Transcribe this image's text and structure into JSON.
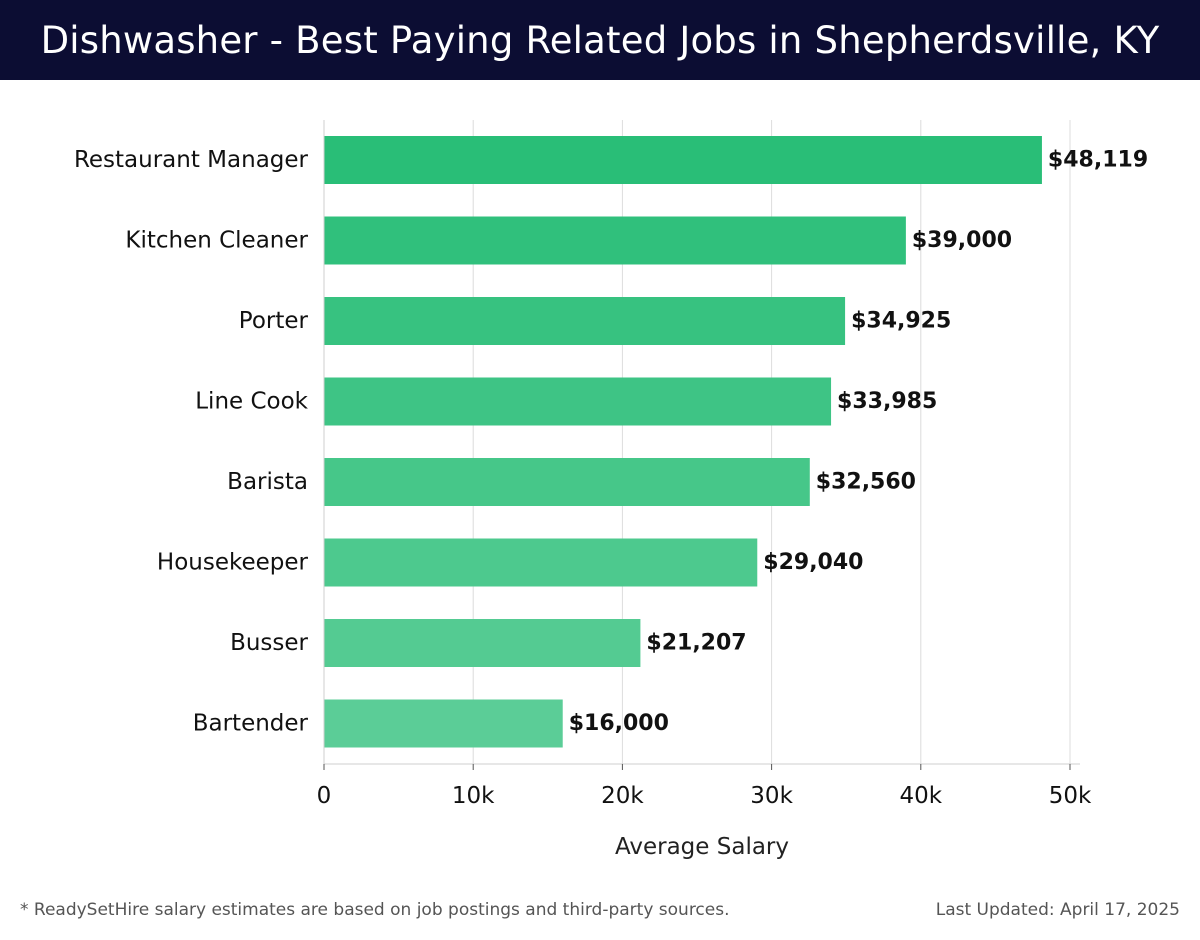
{
  "header": {
    "title": "Dishwasher - Best Paying Related Jobs in Shepherdsville, KY"
  },
  "footer": {
    "note": "* ReadySetHire salary estimates are based on job postings and third-party sources.",
    "updated": "Last Updated: April 17, 2025"
  },
  "colors": {
    "header_bg": "#0c0d33",
    "bar_top": "#29be77",
    "bar_bottom": "#5bcd97"
  },
  "chart_data": {
    "type": "bar",
    "orientation": "horizontal",
    "categories": [
      "Restaurant Manager",
      "Kitchen Cleaner",
      "Porter",
      "Line Cook",
      "Barista",
      "Housekeeper",
      "Busser",
      "Bartender"
    ],
    "values": [
      48119,
      39000,
      34925,
      33985,
      32560,
      29040,
      21207,
      16000
    ],
    "value_labels": [
      "$48,119",
      "$39,000",
      "$34,925",
      "$33,985",
      "$32,560",
      "$29,040",
      "$21,207",
      "$16,000"
    ],
    "xlabel": "Average Salary",
    "ylabel": "",
    "xlim": [
      0,
      50000
    ],
    "xticks": [
      0,
      10000,
      20000,
      30000,
      40000,
      50000
    ],
    "xtick_labels": [
      "0",
      "10k",
      "20k",
      "30k",
      "40k",
      "50k"
    ],
    "grid": true
  }
}
